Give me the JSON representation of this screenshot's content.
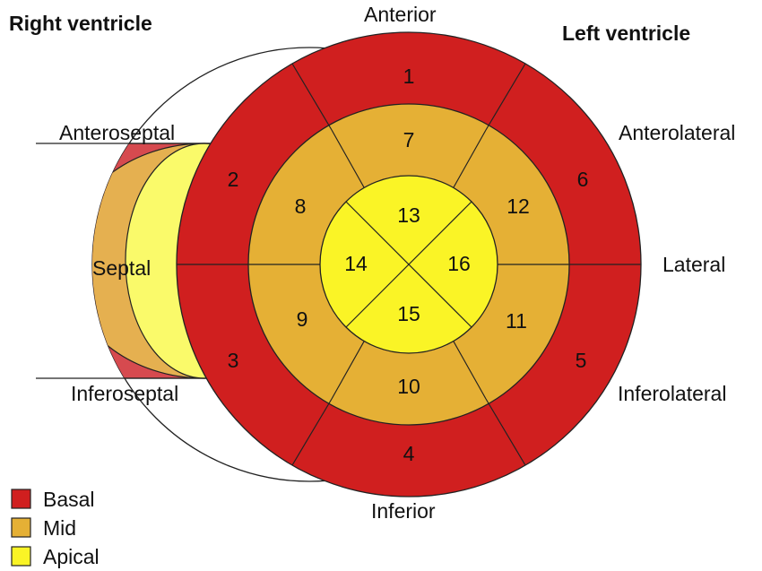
{
  "titles": {
    "right_ventricle": "Right ventricle",
    "left_ventricle": "Left ventricle"
  },
  "directions": {
    "anterior": "Anterior",
    "anterolateral": "Anterolateral",
    "lateral": "Lateral",
    "inferolateral": "Inferolateral",
    "inferior": "Inferior",
    "anteroseptal": "Anteroseptal",
    "septal": "Septal",
    "inferoseptal": "Inferoseptal"
  },
  "segments": {
    "s1": "1",
    "s2": "2",
    "s3": "3",
    "s4": "4",
    "s5": "5",
    "s6": "6",
    "s7": "7",
    "s8": "8",
    "s9": "9",
    "s10": "10",
    "s11": "11",
    "s12": "12",
    "s13": "13",
    "s14": "14",
    "s15": "15",
    "s16": "16"
  },
  "legend": [
    {
      "label": "Basal",
      "color": "#d01f1f"
    },
    {
      "label": "Mid",
      "color": "#e5b035"
    },
    {
      "label": "Apical",
      "color": "#faf426"
    }
  ],
  "colors": {
    "basal": "#d01f1f",
    "mid": "#e5b035",
    "apical": "#faf426",
    "rv_basal": "#d64a4f",
    "rv_mid": "#e5b050",
    "rv_apical": "#fafa6a"
  }
}
